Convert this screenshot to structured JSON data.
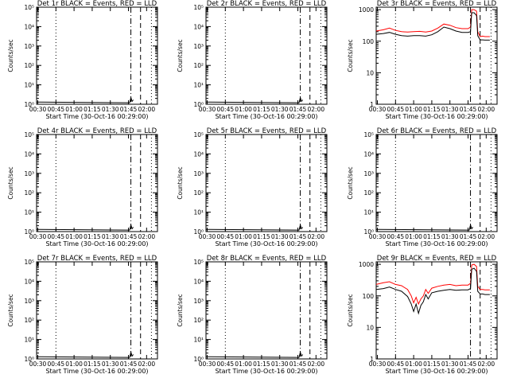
{
  "chart_data": [
    {
      "type": "line",
      "title": "Det 1r BLACK = Events, RED = LLD",
      "xlabel": "Start Time (30-Oct-16 00:29:00)",
      "ylabel": "Counts/sec",
      "x_ticks": [
        "00:30",
        "00:45",
        "01:00",
        "01:15",
        "01:30",
        "01:45",
        "02:00"
      ],
      "y_ticks": [
        "10⁰",
        "10¹",
        "10²",
        "10³",
        "10⁴",
        "10⁵"
      ],
      "yscale": "log",
      "xlim": [
        "00:29",
        "02:09"
      ],
      "ylim": [
        1,
        100000
      ],
      "vlines": [
        {
          "x": "00:45",
          "style": "dotted"
        },
        {
          "x": "01:47",
          "style": "dashdot"
        },
        {
          "x": "01:55",
          "style": "dashed"
        },
        {
          "x": "02:04",
          "style": "dotted"
        }
      ],
      "series": [
        {
          "color": "#000000",
          "x": [
            "00:29",
            "00:30",
            "01:46",
            "01:47",
            "01:48",
            "01:49"
          ],
          "y": [
            1.3,
            1.3,
            1.2,
            2.2,
            1.4,
            1.7
          ]
        }
      ]
    },
    {
      "type": "line",
      "title": "Det 2r BLACK = Events, RED = LLD",
      "xlabel": "Start Time (30-Oct-16 00:29:00)",
      "ylabel": "Counts/sec",
      "x_ticks": [
        "00:30",
        "00:45",
        "01:00",
        "01:15",
        "01:30",
        "01:45",
        "02:00"
      ],
      "y_ticks": [
        "10⁰",
        "10¹",
        "10²",
        "10³",
        "10⁴",
        "10⁵"
      ],
      "yscale": "log",
      "xlim": [
        "00:29",
        "02:09"
      ],
      "ylim": [
        1,
        100000
      ],
      "vlines": [
        {
          "x": "00:45",
          "style": "dotted"
        },
        {
          "x": "01:47",
          "style": "dashdot"
        },
        {
          "x": "01:55",
          "style": "dashed"
        },
        {
          "x": "02:04",
          "style": "dotted"
        }
      ],
      "series": [
        {
          "color": "#000000",
          "x": [
            "00:29",
            "00:30",
            "01:46",
            "01:47",
            "01:48",
            "01:49"
          ],
          "y": [
            1.3,
            1.3,
            1.2,
            2.2,
            1.4,
            1.7
          ]
        }
      ]
    },
    {
      "type": "line",
      "title": "Det 3r BLACK = Events, RED = LLD",
      "xlabel": "Start Time (30-Oct-16 00:29:00)",
      "ylabel": "Counts/sec",
      "x_ticks": [
        "00:30",
        "00:45",
        "01:00",
        "01:15",
        "01:30",
        "01:45",
        "02:00"
      ],
      "y_ticks": [
        "1",
        "10",
        "100",
        "1000"
      ],
      "yscale": "log",
      "xlim": [
        "00:29",
        "02:09"
      ],
      "ylim": [
        1,
        1200
      ],
      "vlines": [
        {
          "x": "00:45",
          "style": "dotted"
        },
        {
          "x": "01:47",
          "style": "dashdot"
        },
        {
          "x": "01:55",
          "style": "dashed"
        },
        {
          "x": "02:04",
          "style": "dotted"
        }
      ],
      "series": [
        {
          "color": "#ff0000",
          "x": [
            "00:29",
            "00:35",
            "00:40",
            "00:45",
            "00:50",
            "00:55",
            "01:00",
            "01:05",
            "01:10",
            "01:15",
            "01:20",
            "01:25",
            "01:30",
            "01:35",
            "01:40",
            "01:45",
            "01:47",
            "01:48",
            "01:50",
            "01:52",
            "01:53",
            "01:55",
            "01:57",
            "01:59",
            "02:00",
            "02:01",
            "02:03"
          ],
          "y": [
            210,
            230,
            260,
            220,
            200,
            195,
            200,
            205,
            195,
            210,
            260,
            350,
            320,
            270,
            250,
            250,
            280,
            1000,
            1000,
            900,
            200,
            140,
            145,
            140,
            140,
            140,
            140
          ]
        },
        {
          "color": "#000000",
          "x": [
            "00:29",
            "00:35",
            "00:40",
            "00:45",
            "00:50",
            "00:55",
            "01:00",
            "01:05",
            "01:10",
            "01:15",
            "01:20",
            "01:25",
            "01:30",
            "01:35",
            "01:40",
            "01:45",
            "01:47",
            "01:48",
            "01:50",
            "01:52",
            "01:53",
            "01:55",
            "01:57",
            "01:59",
            "02:00",
            "02:01",
            "02:03"
          ],
          "y": [
            165,
            175,
            190,
            165,
            150,
            145,
            150,
            150,
            145,
            160,
            200,
            280,
            250,
            210,
            190,
            190,
            200,
            800,
            800,
            650,
            150,
            110,
            110,
            108,
            108,
            108,
            108
          ]
        }
      ]
    },
    {
      "type": "line",
      "title": "Det 4r BLACK = Events, RED = LLD",
      "xlabel": "Start Time (30-Oct-16 00:29:00)",
      "ylabel": "Counts/sec",
      "x_ticks": [
        "00:30",
        "00:45",
        "01:00",
        "01:15",
        "01:30",
        "01:45",
        "02:00"
      ],
      "y_ticks": [
        "10⁰",
        "10¹",
        "10²",
        "10³",
        "10⁴",
        "10⁵"
      ],
      "yscale": "log",
      "xlim": [
        "00:29",
        "02:09"
      ],
      "ylim": [
        1,
        100000
      ],
      "vlines": [
        {
          "x": "00:45",
          "style": "dotted"
        },
        {
          "x": "01:47",
          "style": "dashdot"
        },
        {
          "x": "01:55",
          "style": "dashed"
        },
        {
          "x": "02:04",
          "style": "dotted"
        }
      ],
      "series": [
        {
          "color": "#000000",
          "x": [
            "00:29",
            "00:30",
            "01:46",
            "01:47",
            "01:48",
            "01:49"
          ],
          "y": [
            1.3,
            1.3,
            1.2,
            2.2,
            1.4,
            1.7
          ]
        }
      ]
    },
    {
      "type": "line",
      "title": "Det 5r BLACK = Events, RED = LLD",
      "xlabel": "Start Time (30-Oct-16 00:29:00)",
      "ylabel": "Counts/sec",
      "x_ticks": [
        "00:30",
        "00:45",
        "01:00",
        "01:15",
        "01:30",
        "01:45",
        "02:00"
      ],
      "y_ticks": [
        "10⁰",
        "10¹",
        "10²",
        "10³",
        "10⁴",
        "10⁵"
      ],
      "yscale": "log",
      "xlim": [
        "00:29",
        "02:09"
      ],
      "ylim": [
        1,
        100000
      ],
      "vlines": [
        {
          "x": "00:45",
          "style": "dotted"
        },
        {
          "x": "01:47",
          "style": "dashdot"
        },
        {
          "x": "01:55",
          "style": "dashed"
        },
        {
          "x": "02:04",
          "style": "dotted"
        }
      ],
      "series": [
        {
          "color": "#000000",
          "x": [
            "00:29",
            "00:30",
            "01:46",
            "01:47",
            "01:48",
            "01:49"
          ],
          "y": [
            1.3,
            1.3,
            1.2,
            2.2,
            1.4,
            1.7
          ]
        }
      ]
    },
    {
      "type": "line",
      "title": "Det 6r BLACK = Events, RED = LLD",
      "xlabel": "Start Time (30-Oct-16 00:29:00)",
      "ylabel": "Counts/sec",
      "x_ticks": [
        "00:30",
        "00:45",
        "01:00",
        "01:15",
        "01:30",
        "01:45",
        "02:00"
      ],
      "y_ticks": [
        "10⁰",
        "10¹",
        "10²",
        "10³",
        "10⁴",
        "10⁵"
      ],
      "yscale": "log",
      "xlim": [
        "00:29",
        "02:09"
      ],
      "ylim": [
        1,
        100000
      ],
      "vlines": [
        {
          "x": "00:45",
          "style": "dotted"
        },
        {
          "x": "01:47",
          "style": "dashdot"
        },
        {
          "x": "01:55",
          "style": "dashed"
        },
        {
          "x": "02:04",
          "style": "dotted"
        }
      ],
      "series": [
        {
          "color": "#000000",
          "x": [
            "00:29",
            "00:30",
            "01:46",
            "01:47",
            "01:48",
            "01:49"
          ],
          "y": [
            1.3,
            1.3,
            1.2,
            2.2,
            1.4,
            1.7
          ]
        }
      ]
    },
    {
      "type": "line",
      "title": "Det 7r BLACK = Events, RED = LLD",
      "xlabel": "Start Time (30-Oct-16 00:29:00)",
      "ylabel": "Counts/sec",
      "x_ticks": [
        "00:30",
        "00:45",
        "01:00",
        "01:15",
        "01:30",
        "01:45",
        "02:00"
      ],
      "y_ticks": [
        "10⁰",
        "10¹",
        "10²",
        "10³",
        "10⁴",
        "10⁵"
      ],
      "yscale": "log",
      "xlim": [
        "00:29",
        "02:09"
      ],
      "ylim": [
        1,
        100000
      ],
      "vlines": [
        {
          "x": "00:45",
          "style": "dotted"
        },
        {
          "x": "01:47",
          "style": "dashdot"
        },
        {
          "x": "01:55",
          "style": "dashed"
        },
        {
          "x": "02:04",
          "style": "dotted"
        }
      ],
      "series": [
        {
          "color": "#000000",
          "x": [
            "00:29",
            "00:30",
            "01:46",
            "01:47",
            "01:48",
            "01:49"
          ],
          "y": [
            1.3,
            1.3,
            1.2,
            2.2,
            1.4,
            1.7
          ]
        }
      ]
    },
    {
      "type": "line",
      "title": "Det 8r BLACK = Events, RED = LLD",
      "xlabel": "Start Time (30-Oct-16 00:29:00)",
      "ylabel": "Counts/sec",
      "x_ticks": [
        "00:30",
        "00:45",
        "01:00",
        "01:15",
        "01:30",
        "01:45",
        "02:00"
      ],
      "y_ticks": [
        "10⁰",
        "10¹",
        "10²",
        "10³",
        "10⁴",
        "10⁵"
      ],
      "yscale": "log",
      "xlim": [
        "00:29",
        "02:09"
      ],
      "ylim": [
        1,
        100000
      ],
      "vlines": [
        {
          "x": "00:45",
          "style": "dotted"
        },
        {
          "x": "01:47",
          "style": "dashdot"
        },
        {
          "x": "01:55",
          "style": "dashed"
        },
        {
          "x": "02:04",
          "style": "dotted"
        }
      ],
      "series": [
        {
          "color": "#000000",
          "x": [
            "00:29",
            "00:30",
            "01:46",
            "01:47",
            "01:48",
            "01:49"
          ],
          "y": [
            1.3,
            1.3,
            1.2,
            2.2,
            1.4,
            1.7
          ]
        }
      ]
    },
    {
      "type": "line",
      "title": "Det 9r BLACK = Events, RED = LLD",
      "xlabel": "Start Time (30-Oct-16 00:29:00)",
      "ylabel": "Counts/sec",
      "x_ticks": [
        "00:30",
        "00:45",
        "01:00",
        "01:15",
        "01:30",
        "01:45",
        "02:00"
      ],
      "y_ticks": [
        "1",
        "10",
        "100",
        "1000"
      ],
      "yscale": "log",
      "xlim": [
        "00:29",
        "02:09"
      ],
      "ylim": [
        1,
        1200
      ],
      "vlines": [
        {
          "x": "00:45",
          "style": "dotted"
        },
        {
          "x": "01:47",
          "style": "dashdot"
        },
        {
          "x": "01:55",
          "style": "dashed"
        },
        {
          "x": "02:04",
          "style": "dotted"
        }
      ],
      "series": [
        {
          "color": "#ff0000",
          "x": [
            "00:29",
            "00:35",
            "00:40",
            "00:45",
            "00:50",
            "00:55",
            "00:58",
            "01:00",
            "01:02",
            "01:04",
            "01:06",
            "01:08",
            "01:10",
            "01:12",
            "01:15",
            "01:20",
            "01:25",
            "01:30",
            "01:35",
            "01:40",
            "01:45",
            "01:47",
            "01:48",
            "01:50",
            "01:52",
            "01:53",
            "01:55",
            "01:57",
            "01:59",
            "02:00",
            "02:01",
            "02:03"
          ],
          "y": [
            230,
            260,
            280,
            230,
            210,
            160,
            100,
            60,
            90,
            55,
            80,
            100,
            160,
            120,
            175,
            200,
            220,
            230,
            210,
            220,
            220,
            250,
            950,
            1000,
            850,
            200,
            160,
            160,
            155,
            155,
            155,
            155
          ]
        },
        {
          "color": "#000000",
          "x": [
            "00:29",
            "00:35",
            "00:40",
            "00:45",
            "00:50",
            "00:55",
            "00:58",
            "01:00",
            "01:02",
            "01:04",
            "01:06",
            "01:08",
            "01:10",
            "01:12",
            "01:15",
            "01:20",
            "01:25",
            "01:30",
            "01:35",
            "01:40",
            "01:45",
            "01:47",
            "01:48",
            "01:50",
            "01:52",
            "01:53",
            "01:55",
            "01:57",
            "01:59",
            "02:00",
            "02:01",
            "02:03"
          ],
          "y": [
            160,
            170,
            190,
            160,
            140,
            95,
            55,
            32,
            55,
            28,
            50,
            65,
            110,
            80,
            125,
            140,
            150,
            160,
            150,
            155,
            155,
            170,
            700,
            750,
            600,
            140,
            115,
            115,
            110,
            110,
            110,
            110
          ]
        }
      ]
    }
  ]
}
